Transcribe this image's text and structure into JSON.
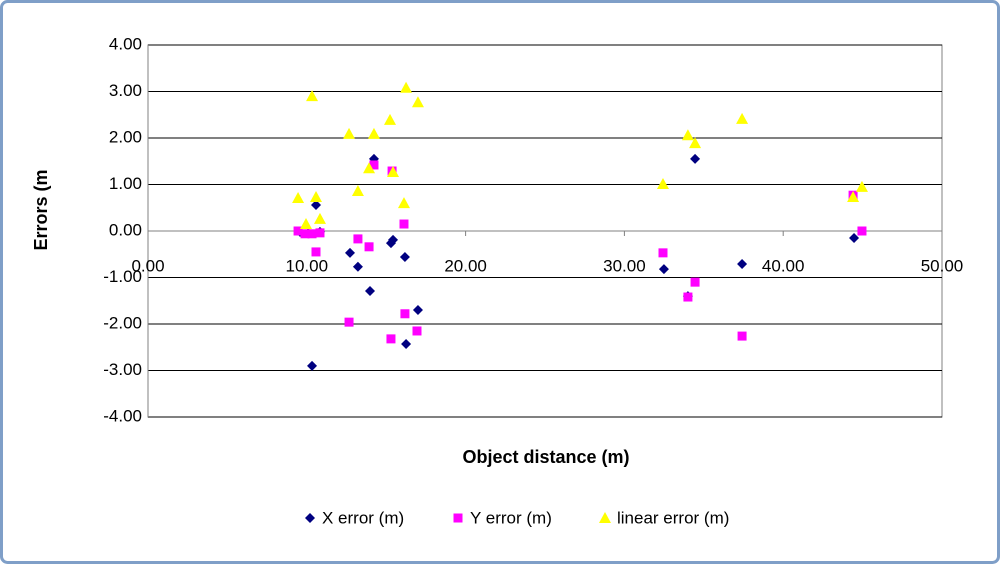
{
  "chart_data": {
    "type": "scatter",
    "xlabel": "Object distance (m)",
    "ylabel": "Errors (m",
    "xlim": [
      0,
      50
    ],
    "ylim": [
      -4,
      4
    ],
    "xticks": [
      {
        "value": 0,
        "label": "0.00"
      },
      {
        "value": 10,
        "label": "10.00"
      },
      {
        "value": 20,
        "label": "20.00"
      },
      {
        "value": 30,
        "label": "30.00"
      },
      {
        "value": 40,
        "label": "40.00"
      },
      {
        "value": 50,
        "label": "50.00"
      }
    ],
    "yticks": [
      {
        "value": -4,
        "label": "-4.00"
      },
      {
        "value": -3,
        "label": "-3.00"
      },
      {
        "value": -2,
        "label": "-2.00"
      },
      {
        "value": -1,
        "label": "-1.00"
      },
      {
        "value": 0,
        "label": "0.00"
      },
      {
        "value": 1,
        "label": "1.00"
      },
      {
        "value": 2,
        "label": "2.00"
      },
      {
        "value": 3,
        "label": "3.00"
      },
      {
        "value": 4,
        "label": "4.00"
      }
    ],
    "grid": true,
    "legend": "bottom",
    "series": [
      {
        "name": "X error (m)",
        "color": "#000080",
        "marker": "diamond",
        "x": [
          9.57,
          10.08,
          10.58,
          10.83,
          10.33,
          12.72,
          13.22,
          13.98,
          14.23,
          15.3,
          15.43,
          16.18,
          16.25,
          17.0,
          32.49,
          34.0,
          34.45,
          37.41,
          44.46
        ],
        "values": [
          -0.02,
          -0.05,
          0.56,
          -0.02,
          -2.9,
          -0.47,
          -0.77,
          -1.29,
          1.55,
          -0.26,
          -0.19,
          -0.56,
          -2.43,
          -1.7,
          -0.82,
          -1.4,
          1.55,
          -0.71,
          -0.15
        ]
      },
      {
        "name": "Y error (m)",
        "color": "#ff00ff",
        "marker": "square",
        "x": [
          9.45,
          9.89,
          10.33,
          10.58,
          10.83,
          12.66,
          13.22,
          13.92,
          14.23,
          15.3,
          15.37,
          16.12,
          16.18,
          16.94,
          32.43,
          34.0,
          34.45,
          37.41,
          44.4,
          44.96
        ],
        "values": [
          0.0,
          -0.06,
          -0.06,
          -0.45,
          -0.04,
          -1.96,
          -0.17,
          -0.34,
          1.42,
          -2.32,
          1.29,
          0.15,
          -1.78,
          -2.15,
          -0.47,
          -1.42,
          -1.1,
          -2.26,
          0.77,
          0.0
        ]
      },
      {
        "name": "linear error (m)",
        "color": "#ffff00",
        "marker": "triangle",
        "x": [
          9.45,
          9.95,
          10.33,
          10.58,
          10.83,
          12.66,
          13.22,
          13.92,
          14.23,
          15.24,
          15.43,
          16.12,
          16.25,
          17.0,
          32.43,
          34.0,
          34.45,
          37.41,
          44.4,
          44.96
        ],
        "values": [
          0.71,
          0.15,
          2.9,
          0.73,
          0.26,
          2.09,
          0.86,
          1.35,
          2.09,
          2.39,
          1.27,
          0.6,
          3.08,
          2.77,
          1.01,
          2.06,
          1.89,
          2.41,
          0.73,
          0.95
        ]
      }
    ]
  }
}
